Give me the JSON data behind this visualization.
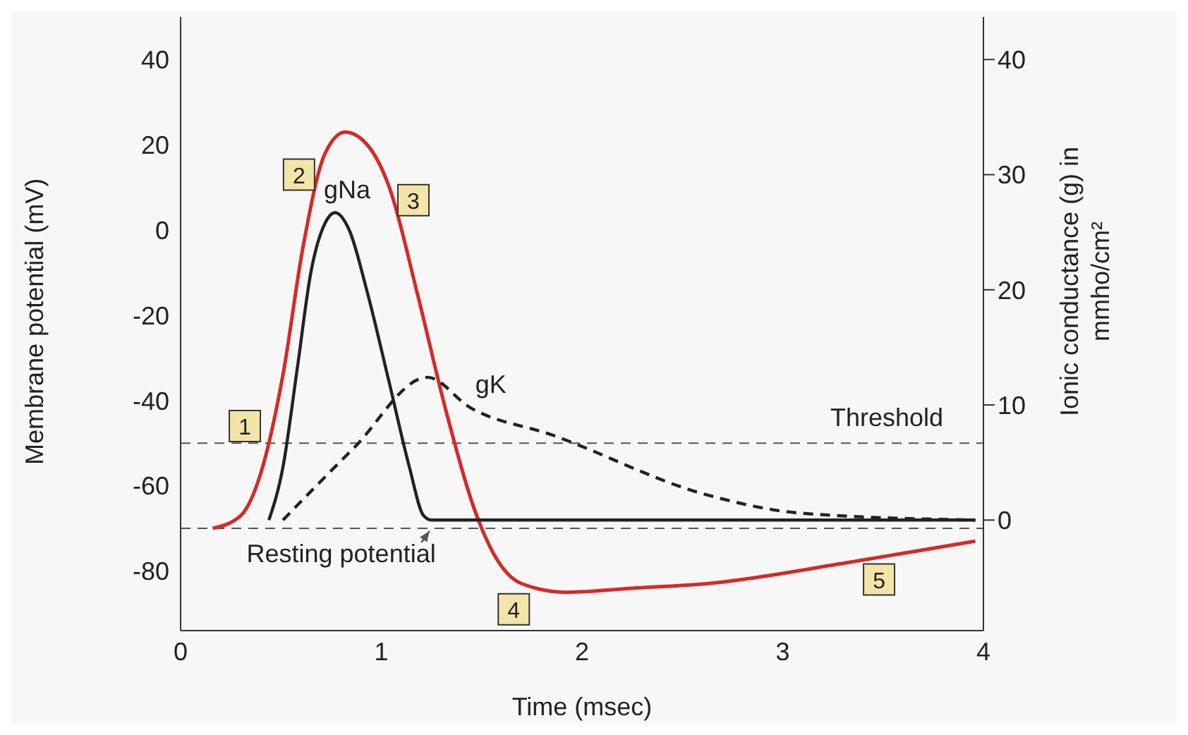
{
  "chart_data": {
    "type": "line",
    "xlabel": "Time (msec)",
    "ylabel": "Membrane potential (mV)",
    "y2label": "Ionic conductance (g) in mmho/cm²",
    "xlim": [
      0,
      4
    ],
    "xticks": [
      0,
      1,
      2,
      3,
      4
    ],
    "ylim": [
      -94,
      50
    ],
    "yticks": [
      -80,
      -60,
      -40,
      -20,
      0,
      20,
      40
    ],
    "y2lim": [
      -9.6,
      43.7
    ],
    "y2ticks": [
      0,
      10,
      20,
      30,
      40
    ],
    "series": [
      {
        "color": "#d42a2a",
        "line_style": "solid",
        "x": [
          0.16,
          0.3,
          0.4,
          0.51,
          0.61,
          0.72,
          0.82,
          0.93,
          1.04,
          1.18,
          1.32,
          1.46,
          1.56,
          1.7,
          1.92,
          2.27,
          2.62,
          3.33,
          3.96
        ],
        "values": [
          -70,
          -67,
          -57,
          -34,
          -4,
          18,
          23,
          20,
          10,
          -15,
          -42,
          -65,
          -76,
          -83,
          -85,
          -84,
          -83,
          -78,
          -73
        ]
      },
      {
        "name": "gNa",
        "color": "#222222",
        "axis": "y2",
        "line_style": "solid",
        "x": [
          0.44,
          0.51,
          0.58,
          0.65,
          0.72,
          0.77,
          0.84,
          0.93,
          1.04,
          1.14,
          1.21,
          1.25,
          3.96
        ],
        "values": [
          0,
          4.6,
          13,
          21.6,
          25.8,
          26.7,
          25.2,
          19.8,
          11.9,
          4.6,
          0.4,
          0,
          0
        ]
      },
      {
        "name": "gK",
        "color": "#222222",
        "axis": "y2",
        "line_style": "dashed",
        "x": [
          0.51,
          0.86,
          1.23,
          1.44,
          1.85,
          2.62,
          3.09,
          3.96
        ],
        "values": [
          0,
          6.2,
          12.4,
          9.8,
          7.4,
          2.2,
          0.6,
          0
        ]
      }
    ],
    "ref_lines": [
      {
        "axis": "y",
        "value": -50,
        "label": "Threshold",
        "color": "#555555",
        "line_style": "dashed"
      },
      {
        "axis": "y",
        "value": -70,
        "label": "Resting potential",
        "color": "#555555",
        "line_style": "dashed"
      }
    ],
    "annotations": [
      {
        "text": "1",
        "x": 0.32,
        "y": -46
      },
      {
        "text": "2",
        "x": 0.59,
        "y": 13
      },
      {
        "text": "3",
        "x": 1.16,
        "y": 7
      },
      {
        "text": "4",
        "x": 1.66,
        "y": -89
      },
      {
        "text": "5",
        "x": 3.48,
        "y": -82
      }
    ]
  }
}
